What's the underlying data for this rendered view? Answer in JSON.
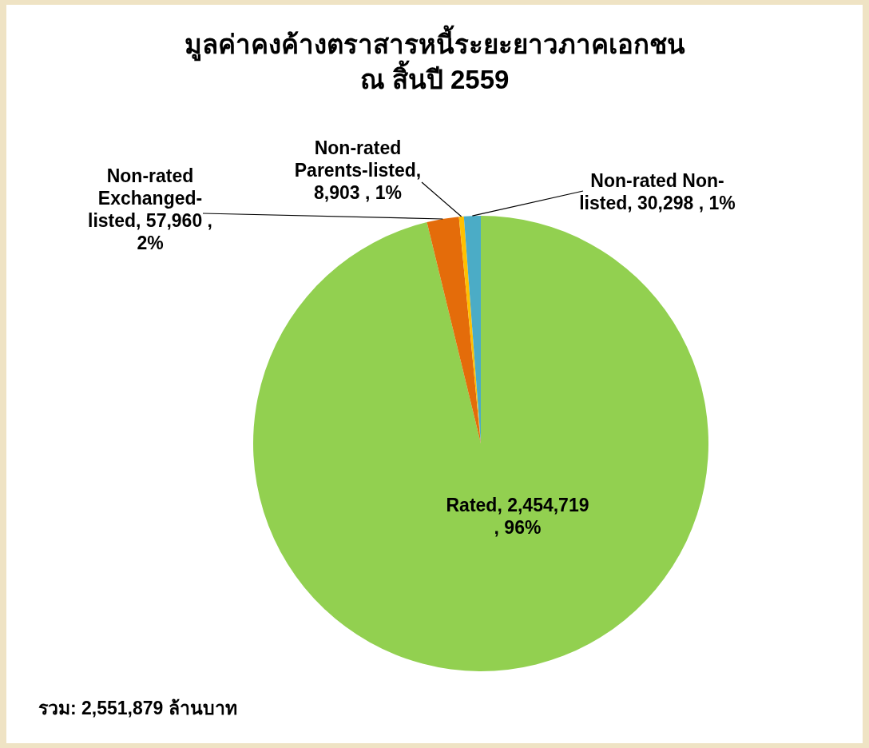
{
  "chart_data": {
    "type": "pie",
    "title": "มูลค่าคงค้างตราสารหนี้ระยะยาวภาคเอกชน\nณ สิ้นปี 2559",
    "categories": [
      "Rated",
      "Non-rated Exchanged-listed",
      "Non-rated Parents-listed",
      "Non-rated Non-listed"
    ],
    "values": [
      2454719,
      57960,
      8903,
      30298
    ],
    "colors": [
      "#92d050",
      "#e46c0a",
      "#ffc000",
      "#4bacc6"
    ],
    "value_labels": [
      ", 2,454,719 , 96%",
      ", 57,960 , 2%",
      ", 8,903 , 1%",
      ", 30,298 , 1%"
    ],
    "annotations": [
      "รวม: 2,551,879 ล้านบาท"
    ]
  }
}
